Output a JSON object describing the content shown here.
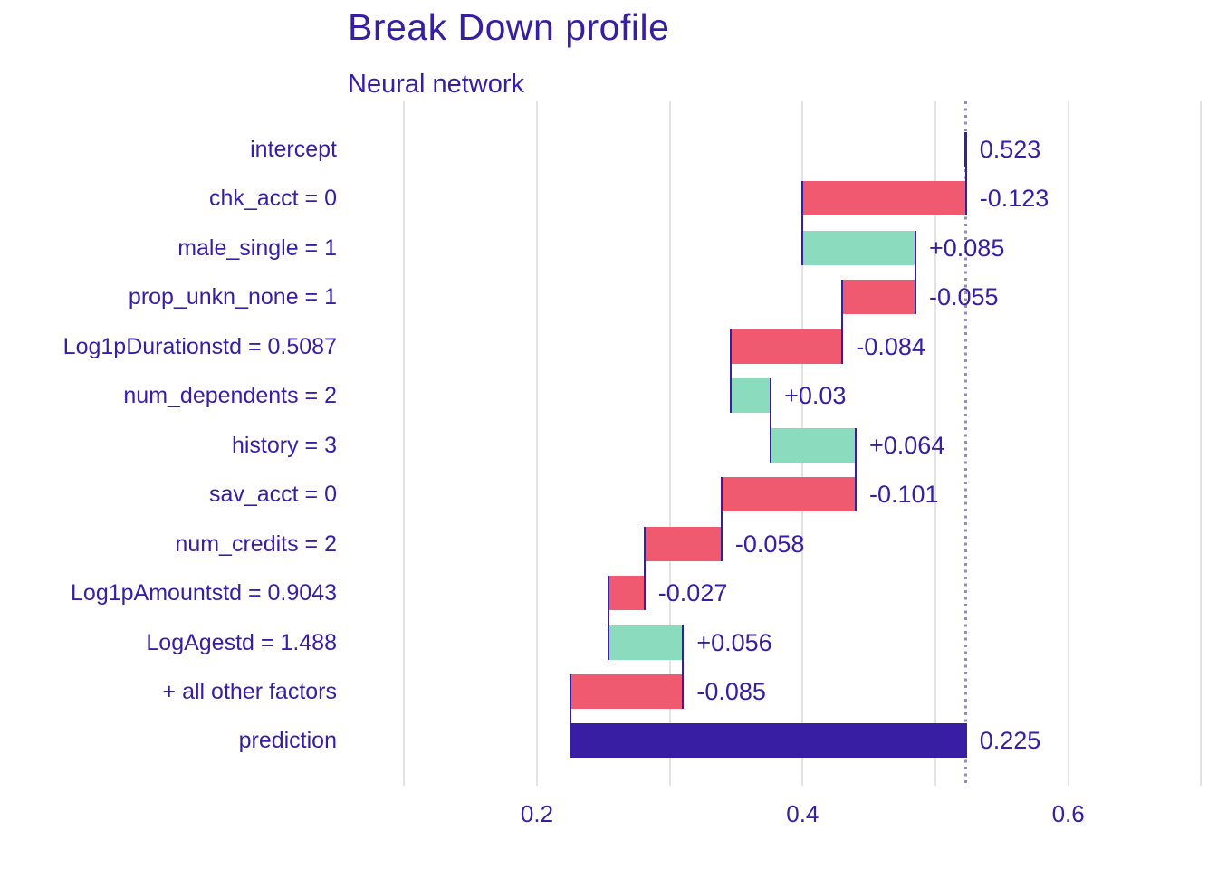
{
  "page": {
    "background": "#ffffff"
  },
  "chart_data": {
    "type": "bar",
    "chart_style": "breakdown-waterfall-horizontal",
    "title": "Break Down profile",
    "subtitle": "Neural network",
    "grid": "vertical-only",
    "legend_position": "none",
    "baseline": {
      "value": 0.523,
      "line_style": "dotted"
    },
    "x_axis": {
      "tick_labels": [
        "0.2",
        "0.4",
        "0.6"
      ],
      "tick_values": [
        0.2,
        0.4,
        0.6
      ],
      "gridline_values": [
        0.1,
        0.2,
        0.3,
        0.4,
        0.5,
        0.6,
        0.7
      ],
      "range": [
        0.082,
        0.712
      ]
    },
    "rows": [
      {
        "label": "intercept",
        "contribution": 0.523,
        "start": 0.523,
        "end": 0.523,
        "kind": "intercept",
        "value_label": "0.523"
      },
      {
        "label": "chk_acct = 0",
        "contribution": -0.123,
        "start": 0.523,
        "end": 0.4,
        "kind": "negative",
        "value_label": "-0.123"
      },
      {
        "label": "male_single = 1",
        "contribution": 0.085,
        "start": 0.4,
        "end": 0.485,
        "kind": "positive",
        "value_label": "+0.085"
      },
      {
        "label": "prop_unkn_none = 1",
        "contribution": -0.055,
        "start": 0.485,
        "end": 0.43,
        "kind": "negative",
        "value_label": "-0.055"
      },
      {
        "label": "Log1pDurationstd = 0.5087",
        "contribution": -0.084,
        "start": 0.43,
        "end": 0.346,
        "kind": "negative",
        "value_label": "-0.084"
      },
      {
        "label": "num_dependents = 2",
        "contribution": 0.03,
        "start": 0.346,
        "end": 0.376,
        "kind": "positive",
        "value_label": "+0.03"
      },
      {
        "label": "history = 3",
        "contribution": 0.064,
        "start": 0.376,
        "end": 0.44,
        "kind": "positive",
        "value_label": "+0.064"
      },
      {
        "label": "sav_acct = 0",
        "contribution": -0.101,
        "start": 0.44,
        "end": 0.339,
        "kind": "negative",
        "value_label": "-0.101"
      },
      {
        "label": "num_credits = 2",
        "contribution": -0.058,
        "start": 0.339,
        "end": 0.281,
        "kind": "negative",
        "value_label": "-0.058"
      },
      {
        "label": "Log1pAmountstd = 0.9043",
        "contribution": -0.027,
        "start": 0.281,
        "end": 0.254,
        "kind": "negative",
        "value_label": "-0.027"
      },
      {
        "label": "LogAgestd = 1.488",
        "contribution": 0.056,
        "start": 0.254,
        "end": 0.31,
        "kind": "positive",
        "value_label": "+0.056"
      },
      {
        "label": "+ all other factors",
        "contribution": -0.085,
        "start": 0.31,
        "end": 0.225,
        "kind": "negative",
        "value_label": "-0.085"
      },
      {
        "label": "prediction",
        "contribution": 0.225,
        "start": 0.523,
        "end": 0.225,
        "kind": "prediction",
        "value_label": "0.225"
      }
    ],
    "colors": {
      "positive": "#8bdcbe",
      "negative": "#f05a71",
      "neutral": "#371ea3",
      "text": "#371ea3",
      "grid": "#e3e3e3",
      "baseline_line": "#9687d2",
      "background": "#ffffff"
    }
  }
}
